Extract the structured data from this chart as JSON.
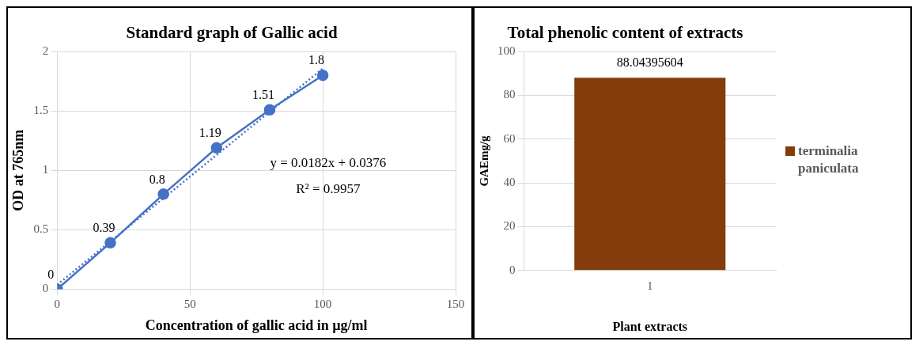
{
  "chart_data": [
    {
      "type": "line",
      "title": "Standard graph of Gallic acid",
      "xlabel": "Concentration of gallic acid in µg/ml",
      "ylabel": "OD at 765nm",
      "xlim": [
        0,
        150
      ],
      "xticks": [
        0,
        50,
        100,
        150
      ],
      "ylim": [
        0,
        2
      ],
      "yticks": [
        0,
        0.5,
        1,
        1.5,
        2
      ],
      "grid": true,
      "legend": false,
      "annotations": [
        "y = 0.0182x + 0.0376",
        "R² = 0.9957"
      ],
      "series": [
        {
          "type": "line",
          "x": [
            0,
            20,
            40,
            60,
            80,
            100
          ],
          "values": [
            0,
            0.39,
            0.8,
            1.19,
            1.51,
            1.8
          ],
          "value_labels": [
            "0",
            "0.39",
            "0.8",
            "1.19",
            "1.51",
            "1.8"
          ],
          "color": "#4472c4",
          "marker": "circle",
          "line_style": "solid"
        },
        {
          "type": "line",
          "x": [
            0,
            100
          ],
          "values": [
            0.0376,
            1.8576
          ],
          "color": "#4472c4",
          "marker": "none",
          "line_style": "dotted"
        }
      ]
    },
    {
      "type": "bar",
      "title": "Total phenolic content of extracts",
      "xlabel": "Plant extracts",
      "ylabel": "GAEmg/g",
      "categories": [
        "1"
      ],
      "ylim": [
        0,
        100
      ],
      "yticks": [
        0,
        20,
        40,
        60,
        80,
        100
      ],
      "grid": "y",
      "legend": "right",
      "data_labels": true,
      "series": [
        {
          "name": "terminalia paniculata",
          "color": "#843c0c",
          "values": [
            88.04395604
          ]
        }
      ]
    }
  ]
}
